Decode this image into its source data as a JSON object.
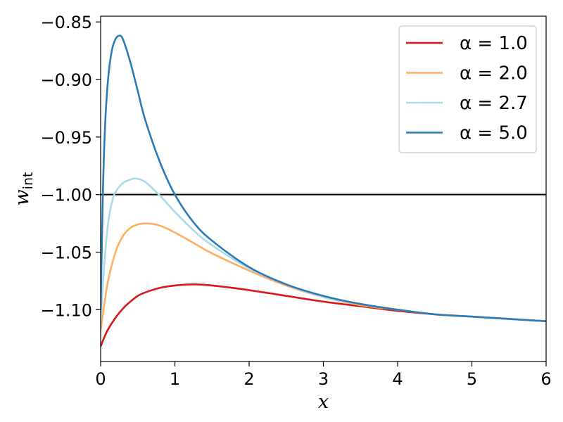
{
  "chart_data": {
    "type": "line",
    "xlabel": "x",
    "ylabel": "w",
    "ylabel_subscript": "int",
    "xlim": [
      0,
      6
    ],
    "ylim": [
      -1.145,
      -0.845
    ],
    "xticks": [
      0,
      1,
      2,
      3,
      4,
      5,
      6
    ],
    "xtick_labels": [
      "0",
      "1",
      "2",
      "3",
      "4",
      "5",
      "6"
    ],
    "yticks": [
      -0.85,
      -0.9,
      -0.95,
      -1.0,
      -1.05,
      -1.1
    ],
    "ytick_labels": [
      "−0.85",
      "−0.90",
      "−0.95",
      "−1.00",
      "−1.05",
      "−1.10"
    ],
    "hline": {
      "y": -1.0,
      "color": "#000000"
    },
    "legend_position": "top-right",
    "grid": false,
    "series": [
      {
        "name": "α = 1.0",
        "color": "#d7191c",
        "x": [
          0,
          0.05,
          0.1,
          0.2,
          0.3,
          0.4,
          0.5,
          0.6,
          0.8,
          1.0,
          1.25,
          1.5,
          2.0,
          2.5,
          3.0,
          3.5,
          4.0,
          4.5,
          5.0,
          5.5,
          6.0
        ],
        "y": [
          -1.132,
          -1.124,
          -1.117,
          -1.107,
          -1.099,
          -1.093,
          -1.088,
          -1.085,
          -1.081,
          -1.079,
          -1.078,
          -1.079,
          -1.083,
          -1.088,
          -1.093,
          -1.097,
          -1.101,
          -1.104,
          -1.106,
          -1.108,
          -1.11
        ]
      },
      {
        "name": "α = 2.0",
        "color": "#fdae61",
        "x": [
          0,
          0.05,
          0.1,
          0.2,
          0.3,
          0.4,
          0.5,
          0.62,
          0.8,
          1.0,
          1.25,
          1.5,
          2.0,
          2.5,
          3.0,
          3.5,
          4.0,
          4.5,
          5.0,
          5.5,
          6.0
        ],
        "y": [
          -1.118,
          -1.095,
          -1.075,
          -1.05,
          -1.036,
          -1.029,
          -1.026,
          -1.025,
          -1.027,
          -1.033,
          -1.042,
          -1.051,
          -1.066,
          -1.079,
          -1.089,
          -1.096,
          -1.1,
          -1.104,
          -1.106,
          -1.108,
          -1.11
        ]
      },
      {
        "name": "α = 2.7",
        "color": "#abd9e9",
        "x": [
          0,
          0.05,
          0.1,
          0.15,
          0.2,
          0.3,
          0.4,
          0.47,
          0.6,
          0.8,
          1.0,
          1.25,
          1.5,
          2.0,
          2.5,
          3.0,
          3.5,
          4.0,
          4.5,
          5.0,
          5.5,
          6.0
        ],
        "y": [
          -1.11,
          -1.06,
          -1.025,
          -1.007,
          -0.998,
          -0.99,
          -0.987,
          -0.986,
          -0.989,
          -1.001,
          -1.015,
          -1.031,
          -1.044,
          -1.064,
          -1.078,
          -1.089,
          -1.095,
          -1.1,
          -1.104,
          -1.106,
          -1.108,
          -1.11
        ]
      },
      {
        "name": "α = 5.0",
        "color": "#2c7bb6",
        "x": [
          0,
          0.03,
          0.06,
          0.1,
          0.15,
          0.2,
          0.25,
          0.3,
          0.4,
          0.5,
          0.6,
          0.8,
          1.0,
          1.25,
          1.5,
          2.0,
          2.5,
          3.0,
          3.5,
          4.0,
          4.5,
          5.0,
          5.5,
          6.0
        ],
        "y": [
          -1.1,
          -1.0,
          -0.94,
          -0.9,
          -0.875,
          -0.865,
          -0.862,
          -0.865,
          -0.885,
          -0.91,
          -0.935,
          -0.972,
          -1.0,
          -1.024,
          -1.04,
          -1.063,
          -1.078,
          -1.088,
          -1.095,
          -1.1,
          -1.104,
          -1.106,
          -1.108,
          -1.11
        ]
      }
    ]
  }
}
